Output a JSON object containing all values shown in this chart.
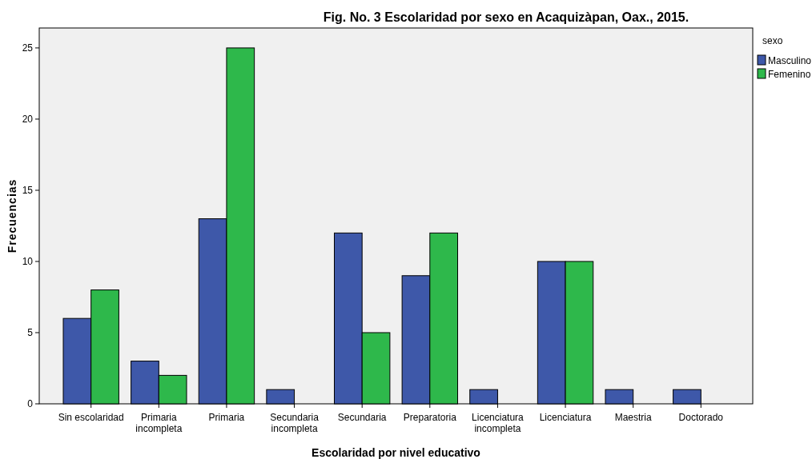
{
  "chart_data": {
    "type": "bar",
    "title": "Fig. No. 3 Escolaridad por sexo en Acaquizàpan, Oax., 2015.",
    "xlabel": "Escolaridad por nivel educativo",
    "ylabel": "Frecuencias",
    "legend_title": "sexo",
    "legend": "top right",
    "categories": [
      "Sin escolaridad",
      "Primaria incompleta",
      "Primaria",
      "Secundaria incompleta",
      "Secundaria",
      "Preparatoria",
      "Licenciatura incompleta",
      "Licenciatura",
      "Maestria",
      "Doctorado"
    ],
    "series": [
      {
        "name": "Masculino",
        "color": "#3e58a9",
        "values": [
          6,
          3,
          13,
          1,
          12,
          9,
          1,
          10,
          1,
          1
        ]
      },
      {
        "name": "Femenino",
        "color": "#2eb84b",
        "values": [
          8,
          2,
          25,
          0,
          5,
          12,
          0,
          10,
          0,
          0
        ]
      }
    ],
    "ylim": [
      0,
      26.4
    ],
    "yticks": [
      0,
      5,
      10,
      15,
      20,
      25
    ],
    "grid": false
  }
}
